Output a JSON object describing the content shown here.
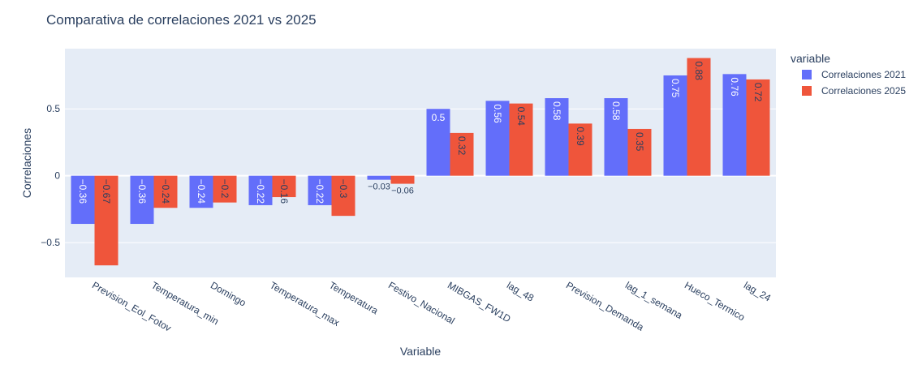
{
  "chart_data": {
    "type": "bar",
    "title": "Comparativa de correlaciones 2021 vs 2025",
    "xlabel": "Variable",
    "ylabel": "Correlaciones",
    "ylim": [
      -0.76,
      0.95
    ],
    "yticks": [
      -0.5,
      0,
      0.5
    ],
    "ytick_labels": [
      "−0.5",
      "0",
      "0.5"
    ],
    "grid": true,
    "legend": {
      "title": "variable",
      "placement": "right"
    },
    "categories": [
      "Prevision_Eol_Fotov",
      "Temperatura_min",
      "Domingo",
      "Temperatura_max",
      "Temperatura",
      "Festivo_Nacional",
      "MIBGAS_FW1D",
      "lag_48",
      "Prevision_Demanda",
      "lag_1_semana",
      "Hueco_Termico",
      "lag_24"
    ],
    "series": [
      {
        "name": "Correlaciones 2021",
        "color": "#636efa",
        "values": [
          -0.36,
          -0.36,
          -0.24,
          -0.22,
          -0.22,
          -0.03,
          0.5,
          0.56,
          0.58,
          0.58,
          0.75,
          0.76
        ],
        "labels": [
          "−0.36",
          "−0.36",
          "−0.24",
          "−0.22",
          "−0.22",
          "−0.03",
          "0.5",
          "0.56",
          "0.58",
          "0.58",
          "0.75",
          "0.76"
        ]
      },
      {
        "name": "Correlaciones 2025",
        "color": "#ef553b",
        "values": [
          -0.67,
          -0.24,
          -0.2,
          -0.16,
          -0.3,
          -0.06,
          0.32,
          0.54,
          0.39,
          0.35,
          0.88,
          0.72
        ],
        "labels": [
          "−0.67",
          "−0.24",
          "−0.2",
          "−0.16",
          "−0.3",
          "−0.06",
          "0.32",
          "0.54",
          "0.39",
          "0.35",
          "0.88",
          "0.72"
        ]
      }
    ]
  },
  "colors": {
    "plot_bg": "#e5ecf6",
    "text": "#2a3f5f",
    "grid": "#ffffff"
  }
}
